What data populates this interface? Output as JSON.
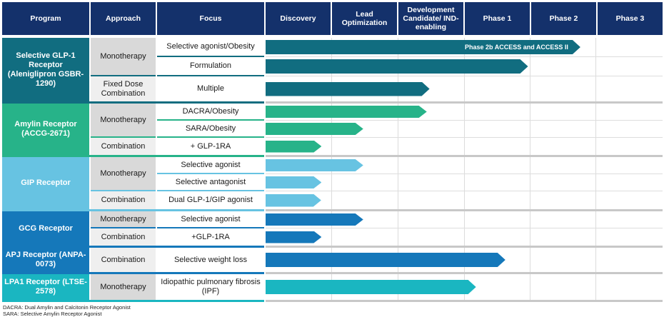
{
  "table": {
    "header_columns": [
      "Program",
      "Approach",
      "Focus",
      "Discovery",
      "Lead Optimization",
      "Development Candidate/ IND-enabling",
      "Phase 1",
      "Phase 2",
      "Phase 3"
    ],
    "stages": [
      "Discovery",
      "Lead Optimization",
      "Development Candidate/IND-enabling",
      "Phase 1",
      "Phase 2",
      "Phase 3"
    ]
  },
  "colors": {
    "header_bg": "#14316B",
    "header_text": "#FFFFFF",
    "approach_monotherapy_bg": "#D9D9D9",
    "approach_combination_bg": "#EFEFEF",
    "section_divider_gray": "#C8C8C8",
    "row_line_gray": "#DDDDDD",
    "glp1_teal": "#116D80",
    "amylin_green": "#27B389",
    "gip_light_blue": "#67C3E2",
    "gcg_blue": "#1578BA",
    "apj_blue": "#1578BA",
    "lpa1_cyan": "#1AB6C1"
  },
  "sections": [
    {
      "program": "Selective GLP-1 Receptor (Aleniglipron GSBR-1290)",
      "color": "#116D80",
      "approaches": [
        {
          "label": "Monotherapy",
          "span": 2
        },
        {
          "label": "Fixed Dose Combination",
          "span": 1
        }
      ],
      "rows": [
        {
          "focus": "Selective agonist/Obesity",
          "end": 0.793,
          "ends_in": "Phase 2",
          "arrow_label": "Phase 2b ACCESS and ACCESS II"
        },
        {
          "focus": "Formulation",
          "end": 0.661,
          "ends_in": "Phase 1"
        },
        {
          "focus": "Multiple",
          "end": 0.413,
          "ends_in": "Development Candidate/IND-enabling"
        }
      ]
    },
    {
      "program": "Amylin Receptor (ACCG-2671)",
      "color": "#27B389",
      "approaches": [
        {
          "label": "Monotherapy",
          "span": 2
        },
        {
          "label": "Combination",
          "span": 1
        }
      ],
      "rows": [
        {
          "focus": "DACRA/Obesity",
          "end": 0.406,
          "ends_in": "Development Candidate/IND-enabling"
        },
        {
          "focus": "SARA/Obesity",
          "end": 0.246,
          "ends_in": "Lead Optimization"
        },
        {
          "focus": "+ GLP-1RA",
          "end": 0.141,
          "ends_in": "Discovery"
        }
      ]
    },
    {
      "program": "GIP Receptor",
      "color": "#67C3E2",
      "approaches": [
        {
          "label": "Monotherapy",
          "span": 2
        },
        {
          "label": "Combination",
          "span": 1
        }
      ],
      "rows": [
        {
          "focus": "Selective agonist",
          "end": 0.246,
          "ends_in": "Lead Optimization"
        },
        {
          "focus": "Selective antagonist",
          "end": 0.141,
          "ends_in": "Discovery"
        },
        {
          "focus": "Dual GLP-1/GIP agonist",
          "end": 0.14,
          "ends_in": "Discovery"
        }
      ]
    },
    {
      "program": "GCG Receptor",
      "color": "#1578BA",
      "approaches": [
        {
          "label": "Monotherapy",
          "span": 1
        },
        {
          "label": "Combination",
          "span": 1
        }
      ],
      "rows": [
        {
          "focus": "Selective agonist",
          "end": 0.246,
          "ends_in": "Lead Optimization"
        },
        {
          "focus": "+GLP-1RA",
          "end": 0.141,
          "ends_in": "Discovery"
        }
      ]
    },
    {
      "program": "APJ Receptor (ANPA-0073)",
      "color": "#1578BA",
      "approaches": [
        {
          "label": "Combination",
          "span": 1
        }
      ],
      "rows": [
        {
          "focus": "Selective weight loss",
          "end": 0.604,
          "ends_in": "Phase 1"
        }
      ]
    },
    {
      "program": "LPA1 Receptor (LTSE-2578)",
      "color": "#1AB6C1",
      "approaches": [
        {
          "label": "Monotherapy",
          "span": 1
        }
      ],
      "rows": [
        {
          "focus": "Idiopathic pulmonary fibrosis (IPF)",
          "end": 0.53,
          "ends_in": "Phase 1"
        }
      ]
    }
  ],
  "footnotes": [
    "DACRA: Dual Amylin and Calcitonin Receptor Agonist",
    "SARA: Selective Amylin Receptor Agonist"
  ]
}
